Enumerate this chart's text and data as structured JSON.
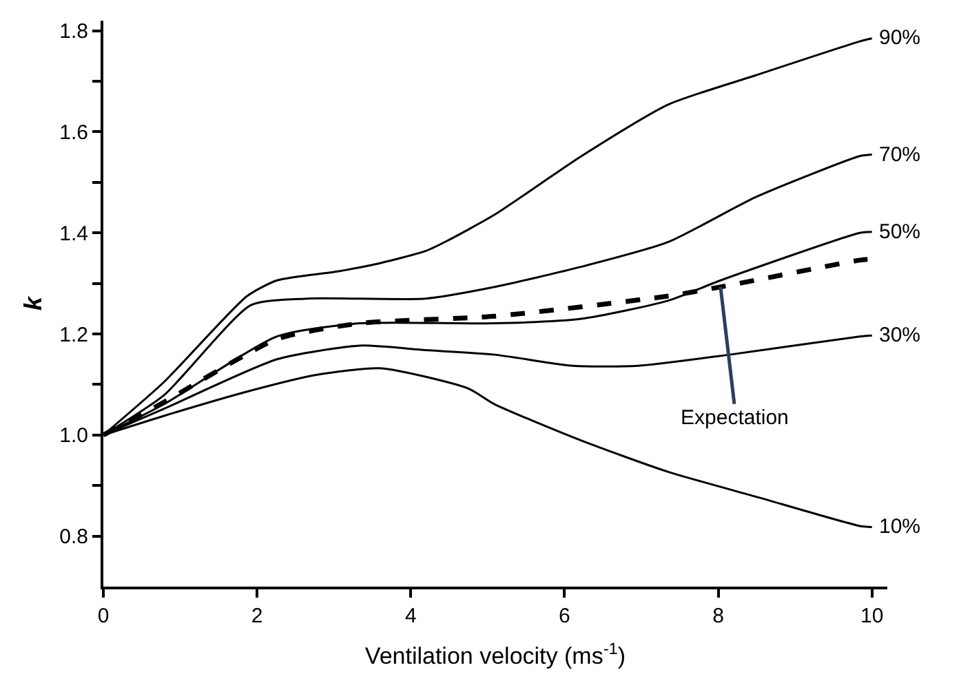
{
  "chart_data": {
    "type": "line",
    "xlabel": "Ventilation velocity (ms$^{-1}$)",
    "ylabel": "k",
    "xlim": [
      0,
      10.2
    ],
    "xticks": [
      0,
      2,
      4,
      6,
      8,
      10
    ],
    "ylim": [
      0.7,
      1.82
    ],
    "yticks": [
      {
        "value": 0.8,
        "label": "0.8"
      },
      {
        "value": 0.9,
        "label": null
      },
      {
        "value": 1.0,
        "label": "1.0"
      },
      {
        "value": 1.1,
        "label": null
      },
      {
        "value": 1.2,
        "label": "1.2"
      },
      {
        "value": 1.3,
        "label": null
      },
      {
        "value": 1.4,
        "label": "1.4"
      },
      {
        "value": 1.5,
        "label": null
      },
      {
        "value": 1.6,
        "label": "1.6"
      },
      {
        "value": 1.7,
        "label": null
      },
      {
        "value": 1.8,
        "label": "1.8"
      }
    ],
    "legend": false,
    "marker": "none",
    "series": [
      {
        "name": "90%",
        "color": "#000000",
        "line_style": "solid",
        "x": [
          0,
          0.79,
          1.87,
          2.26,
          3.06,
          3.6,
          4.19,
          4.47,
          5.09,
          6.22,
          7.35,
          8.49,
          9.84,
          10
        ],
        "values": [
          1.0,
          1.105,
          1.275,
          1.306,
          1.324,
          1.34,
          1.364,
          1.384,
          1.436,
          1.552,
          1.654,
          1.712,
          1.779,
          1.785
        ]
      },
      {
        "name": "70%",
        "color": "#000000",
        "line_style": "solid",
        "x": [
          0,
          0.79,
          1.92,
          2.66,
          4.19,
          5.09,
          6.22,
          7.35,
          8.49,
          9.84,
          10
        ],
        "values": [
          1.0,
          1.079,
          1.257,
          1.27,
          1.27,
          1.293,
          1.333,
          1.382,
          1.471,
          1.552,
          1.555
        ]
      },
      {
        "name": "50%",
        "color": "#000000",
        "line_style": "solid",
        "x": [
          0,
          0.79,
          2.26,
          3.34,
          5.09,
          6.22,
          7.35,
          8.03,
          9.84,
          10
        ],
        "values": [
          1.0,
          1.061,
          1.195,
          1.221,
          1.221,
          1.23,
          1.266,
          1.306,
          1.4,
          1.402
        ]
      },
      {
        "name": "30%",
        "color": "#000000",
        "line_style": "solid",
        "x": [
          0,
          0.79,
          2.26,
          3.34,
          4.19,
          5.09,
          6.11,
          6.96,
          8.15,
          9.84,
          10
        ],
        "values": [
          1.0,
          1.052,
          1.15,
          1.177,
          1.168,
          1.159,
          1.137,
          1.137,
          1.159,
          1.195,
          1.197
        ]
      },
      {
        "name": "10%",
        "color": "#000000",
        "line_style": "solid",
        "x": [
          0,
          0.79,
          1.92,
          2.77,
          3.62,
          4.75,
          5.09,
          6.22,
          7.35,
          8.49,
          9.84,
          10
        ],
        "values": [
          1.0,
          1.038,
          1.088,
          1.119,
          1.132,
          1.092,
          1.061,
          0.989,
          0.927,
          0.878,
          0.82,
          0.818
        ]
      },
      {
        "color": "#000000",
        "line_style": "dashed",
        "x": [
          0,
          0.79,
          2.26,
          3.34,
          5.09,
          7.35,
          8.03,
          9.84,
          10
        ],
        "values": [
          1.0,
          1.065,
          1.19,
          1.221,
          1.235,
          1.275,
          1.293,
          1.346,
          1.348
        ]
      }
    ],
    "annotations": [
      {
        "text": "Expectation",
        "x": 8.03,
        "y": 1.293
      }
    ]
  }
}
